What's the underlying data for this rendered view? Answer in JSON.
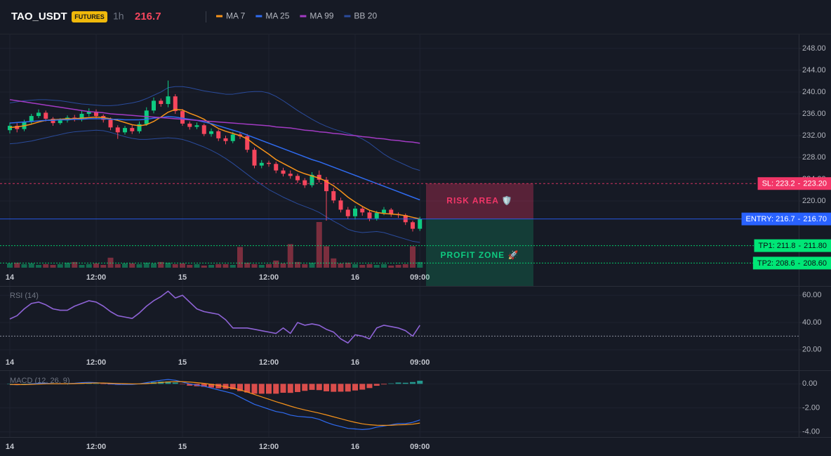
{
  "header": {
    "symbol": "TAO_USDT",
    "badge": "FUTURES",
    "interval": "1h",
    "price": "216.7"
  },
  "chart_data": [
    {
      "type": "candlestick",
      "categories": [
        "14",
        null,
        null,
        null,
        null,
        null,
        null,
        null,
        null,
        null,
        null,
        null,
        "12:00",
        null,
        null,
        null,
        null,
        null,
        null,
        null,
        null,
        null,
        null,
        null,
        "15",
        null,
        null,
        null,
        null,
        null,
        null,
        null,
        null,
        null,
        null,
        null,
        "12:00",
        null,
        null,
        null,
        null,
        null,
        null,
        null,
        null,
        null,
        null,
        null,
        "16",
        null,
        null,
        null,
        null,
        null,
        null,
        null,
        null,
        "09:00"
      ],
      "open": [
        233.0,
        233.8,
        233.2,
        234.5,
        235.6,
        236.2,
        235.1,
        234.3,
        234.8,
        235.3,
        235.0,
        236.0,
        236.4,
        235.6,
        234.9,
        233.5,
        232.6,
        233.4,
        232.8,
        234.1,
        236.6,
        238.4,
        237.8,
        239.2,
        236.5,
        234.2,
        233.6,
        233.9,
        232.3,
        232.8,
        231.5,
        231.0,
        232.2,
        231.9,
        229.4,
        226.5,
        227.0,
        226.8,
        225.6,
        225.0,
        224.6,
        223.8,
        222.9,
        224.8,
        223.9,
        221.8,
        220.1,
        218.4,
        217.2,
        218.6,
        217.9,
        216.8,
        217.8,
        218.4,
        217.6,
        217.4,
        216.1,
        214.9
      ],
      "high": [
        234.4,
        234.3,
        234.9,
        236.0,
        236.8,
        236.6,
        235.4,
        235.2,
        235.7,
        235.8,
        236.6,
        237.0,
        236.8,
        235.9,
        235.3,
        233.9,
        233.8,
        233.9,
        234.6,
        237.2,
        239.0,
        238.8,
        242.1,
        239.6,
        236.9,
        234.6,
        234.4,
        234.2,
        233.3,
        233.1,
        232.0,
        232.7,
        232.6,
        232.3,
        229.8,
        227.5,
        227.4,
        227.2,
        226.1,
        225.6,
        225.0,
        224.2,
        225.3,
        225.6,
        224.4,
        222.4,
        220.6,
        218.9,
        219.1,
        218.9,
        218.2,
        218.2,
        218.9,
        218.7,
        217.9,
        217.7,
        216.4,
        217.1
      ],
      "low": [
        232.4,
        232.6,
        232.8,
        234.1,
        235.2,
        234.6,
        233.8,
        234.0,
        234.4,
        234.6,
        234.6,
        235.5,
        235.1,
        234.4,
        233.0,
        231.4,
        232.2,
        232.3,
        232.4,
        233.8,
        236.1,
        237.3,
        237.2,
        236.0,
        233.8,
        233.1,
        233.2,
        231.9,
        231.8,
        231.0,
        230.4,
        230.6,
        231.4,
        228.9,
        226.0,
        226.0,
        226.3,
        225.1,
        224.5,
        224.1,
        223.3,
        222.4,
        222.5,
        223.4,
        216.4,
        219.6,
        217.9,
        216.7,
        216.6,
        217.3,
        216.3,
        216.4,
        217.4,
        217.1,
        216.9,
        215.6,
        214.4,
        214.5
      ],
      "close": [
        233.8,
        233.2,
        234.5,
        235.6,
        236.2,
        235.1,
        234.3,
        234.8,
        235.3,
        235.0,
        236.0,
        236.4,
        235.6,
        234.9,
        233.5,
        232.6,
        233.4,
        232.8,
        234.1,
        236.6,
        238.4,
        237.8,
        239.2,
        236.5,
        234.2,
        233.6,
        233.9,
        232.3,
        232.8,
        231.5,
        231.0,
        232.2,
        231.9,
        229.4,
        226.5,
        227.0,
        226.8,
        225.6,
        225.0,
        224.6,
        223.8,
        222.9,
        224.8,
        223.9,
        221.8,
        220.1,
        218.4,
        217.2,
        218.6,
        217.9,
        216.8,
        217.8,
        218.4,
        217.6,
        217.4,
        216.1,
        214.9,
        216.7
      ],
      "volume": [
        12,
        14,
        10,
        12,
        8,
        10,
        8,
        10,
        14,
        16,
        8,
        10,
        12,
        8,
        28,
        10,
        12,
        12,
        10,
        14,
        12,
        16,
        14,
        10,
        12,
        8,
        10,
        6,
        8,
        10,
        10,
        8,
        58,
        14,
        10,
        8,
        10,
        20,
        12,
        66,
        16,
        10,
        14,
        128,
        60,
        26,
        12,
        14,
        10,
        8,
        10,
        8,
        10,
        6,
        8,
        10,
        60,
        16
      ],
      "up_color": "#0ecb81",
      "down_color": "#f6465d",
      "series": [
        {
          "name": "MA 7",
          "color": "#f7931a",
          "values": [
            233.5,
            233.6,
            233.8,
            234.1,
            234.5,
            234.8,
            234.9,
            235.0,
            235.1,
            235.1,
            235.2,
            235.3,
            235.4,
            235.3,
            235.1,
            234.8,
            234.4,
            234.0,
            233.8,
            234.0,
            234.6,
            235.4,
            236.3,
            236.8,
            236.7,
            236.1,
            235.6,
            235.0,
            234.1,
            233.3,
            232.8,
            232.4,
            232.0,
            231.4,
            230.4,
            229.5,
            228.6,
            227.6,
            226.9,
            226.2,
            225.5,
            225.0,
            224.6,
            224.2,
            223.6,
            222.8,
            221.8,
            220.7,
            219.8,
            219.0,
            218.3,
            217.9,
            217.7,
            217.6,
            217.5,
            217.3,
            217.0,
            216.7
          ]
        },
        {
          "name": "MA 25",
          "color": "#2f6bf0",
          "values": [
            234.3,
            234.4,
            234.5,
            234.6,
            234.7,
            234.8,
            234.8,
            234.9,
            234.9,
            235.0,
            235.0,
            235.1,
            235.1,
            235.1,
            235.0,
            235.0,
            234.9,
            234.9,
            234.9,
            235.0,
            235.2,
            235.3,
            235.5,
            235.4,
            235.2,
            235.0,
            234.8,
            234.5,
            234.2,
            233.8,
            233.4,
            233.0,
            232.6,
            232.1,
            231.6,
            231.1,
            230.6,
            230.1,
            229.6,
            229.1,
            228.6,
            228.1,
            227.6,
            227.2,
            226.7,
            226.2,
            225.7,
            225.2,
            224.7,
            224.2,
            223.7,
            223.2,
            222.7,
            222.2,
            221.7,
            221.2,
            220.7,
            220.2
          ]
        },
        {
          "name": "MA 99",
          "color": "#a33bc4",
          "values": [
            238.6,
            238.4,
            238.2,
            238.0,
            237.8,
            237.6,
            237.4,
            237.2,
            237.0,
            236.8,
            236.6,
            236.4,
            236.3,
            236.2,
            236.0,
            235.9,
            235.8,
            235.7,
            235.6,
            235.5,
            235.4,
            235.3,
            235.2,
            235.1,
            235.0,
            234.9,
            234.8,
            234.7,
            234.6,
            234.5,
            234.4,
            234.3,
            234.2,
            234.1,
            234.0,
            233.9,
            233.8,
            233.6,
            233.5,
            233.4,
            233.2,
            233.0,
            232.9,
            232.7,
            232.6,
            232.4,
            232.3,
            232.1,
            232.0,
            231.8,
            231.7,
            231.5,
            231.4,
            231.2,
            231.1,
            230.9,
            230.8,
            230.6
          ]
        }
      ],
      "bands": {
        "name": "BB 20",
        "color": "#2a4b9b",
        "upper": [
          238.0,
          238.2,
          238.4,
          238.5,
          238.6,
          238.6,
          238.5,
          238.4,
          238.2,
          238.0,
          237.8,
          237.7,
          237.6,
          237.5,
          237.5,
          237.6,
          237.8,
          238.0,
          238.3,
          238.8,
          239.4,
          240.0,
          240.8,
          241.0,
          241.0,
          240.8,
          240.5,
          240.2,
          240.0,
          239.8,
          239.6,
          239.6,
          239.8,
          240.0,
          240.1,
          240.1,
          239.8,
          239.2,
          238.4,
          237.5,
          236.6,
          235.8,
          235.0,
          234.3,
          233.7,
          233.2,
          232.8,
          232.4,
          232.0,
          231.4,
          230.6,
          229.6,
          228.6,
          227.8,
          227.2,
          226.6,
          226.0,
          225.6
        ],
        "lower": [
          230.5,
          230.6,
          230.8,
          231.0,
          231.3,
          231.6,
          231.9,
          232.2,
          232.5,
          232.7,
          232.8,
          232.9,
          233.0,
          232.9,
          232.6,
          232.2,
          231.8,
          231.5,
          231.3,
          231.3,
          231.4,
          231.5,
          231.6,
          231.5,
          231.3,
          230.9,
          230.4,
          229.9,
          229.3,
          228.6,
          227.8,
          226.9,
          225.9,
          224.9,
          223.9,
          223.0,
          222.1,
          221.4,
          220.7,
          220.1,
          219.5,
          219.0,
          218.5,
          217.9,
          217.1,
          216.3,
          215.6,
          214.8,
          214.4,
          214.2,
          214.3,
          214.4,
          214.2,
          213.8,
          213.4,
          213.0,
          212.6,
          212.4
        ]
      },
      "ylim": [
        204.4,
        250.7
      ],
      "yticks": [
        {
          "value": 220,
          "label": "220.00"
        },
        {
          "value": 224,
          "label": "224.00"
        },
        {
          "value": 228,
          "label": "228.00"
        },
        {
          "value": 232,
          "label": "232.00"
        },
        {
          "value": 236,
          "label": "236.00"
        },
        {
          "value": 240,
          "label": "240.00"
        },
        {
          "value": 244,
          "label": "244.00"
        },
        {
          "value": 248,
          "label": "248.00"
        }
      ],
      "grid": true,
      "tag_separator": "-",
      "levels": [
        {
          "label": "SL: 223.2",
          "value": 223.2,
          "value_label": "223.20",
          "color": "#f23668",
          "text_color": "#ffffff",
          "style": "dashed"
        },
        {
          "label": "ENTRY: 216.7",
          "value": 216.7,
          "value_label": "216.70",
          "color": "#2962ff",
          "text_color": "#ffffff",
          "style": "solid"
        },
        {
          "label": "TP1: 211.8",
          "value": 211.8,
          "value_label": "211.80",
          "color": "#00e676",
          "text_color": "#0b0e14",
          "style": "dotted"
        },
        {
          "label": "TP2: 208.6",
          "value": 208.6,
          "value_label": "208.60",
          "color": "#00e676",
          "text_color": "#0b0e14",
          "style": "dotted"
        }
      ],
      "zones": [
        {
          "label": "RISK AREA 🛡️",
          "color": "#f23668"
        },
        {
          "label": "PROFIT ZONE 🚀",
          "color": "#0ecb81"
        }
      ]
    },
    {
      "type": "line",
      "title": "RSI (14)",
      "color": "#8e63d6",
      "values": [
        42.6,
        45,
        50,
        54,
        55,
        53,
        50,
        49,
        49,
        52,
        54,
        56,
        55,
        52,
        48,
        45,
        44,
        43,
        47,
        52,
        56,
        59,
        63,
        58,
        60,
        55,
        50,
        48,
        47,
        46,
        42,
        36,
        36,
        36,
        35,
        34,
        33,
        32,
        36,
        32,
        40,
        38,
        39,
        38,
        35,
        33,
        28,
        25,
        31,
        30,
        28,
        36,
        38,
        37,
        36,
        34,
        30,
        38
      ],
      "reference": 30,
      "ylim": [
        16.3,
        66.3
      ],
      "yticks": [
        {
          "value": 20,
          "label": "20.00"
        },
        {
          "value": 40,
          "label": "40.00"
        },
        {
          "value": 60,
          "label": "60.00"
        }
      ],
      "grid": true
    },
    {
      "type": "macd",
      "title": "MACD (12, 26, 9)",
      "macd": {
        "color": "#2f6bf0",
        "values": [
          -0.05,
          -0.08,
          -0.05,
          0.0,
          0.05,
          0.05,
          0.02,
          0.0,
          0.02,
          0.05,
          0.1,
          0.12,
          0.1,
          0.05,
          0.0,
          -0.05,
          -0.05,
          -0.05,
          0.0,
          0.1,
          0.2,
          0.3,
          0.36,
          0.3,
          0.15,
          0.0,
          -0.1,
          -0.2,
          -0.35,
          -0.5,
          -0.65,
          -0.8,
          -1.1,
          -1.4,
          -1.7,
          -1.9,
          -2.1,
          -2.3,
          -2.4,
          -2.6,
          -2.7,
          -2.75,
          -2.8,
          -2.95,
          -3.2,
          -3.4,
          -3.55,
          -3.7,
          -3.75,
          -3.8,
          -3.75,
          -3.6,
          -3.5,
          -3.4,
          -3.3,
          -3.3,
          -3.2,
          -3.0
        ]
      },
      "signal": {
        "color": "#f7931a",
        "values": [
          -0.05,
          -0.06,
          -0.06,
          -0.04,
          -0.02,
          0.0,
          0.01,
          0.01,
          0.01,
          0.02,
          0.04,
          0.06,
          0.07,
          0.07,
          0.05,
          0.03,
          0.01,
          0.0,
          0.0,
          0.02,
          0.06,
          0.11,
          0.16,
          0.19,
          0.18,
          0.15,
          0.1,
          0.04,
          -0.04,
          -0.13,
          -0.24,
          -0.35,
          -0.5,
          -0.68,
          -0.88,
          -1.08,
          -1.28,
          -1.48,
          -1.66,
          -1.85,
          -2.02,
          -2.17,
          -2.3,
          -2.43,
          -2.58,
          -2.74,
          -2.9,
          -3.06,
          -3.2,
          -3.32,
          -3.4,
          -3.44,
          -3.45,
          -3.44,
          -3.41,
          -3.39,
          -3.35,
          -3.26
        ]
      },
      "histogram": {
        "up_color": "#26a69a",
        "down_color": "#ef5350",
        "values": [
          0,
          -0.02,
          0.01,
          0.04,
          0.07,
          0.05,
          0.01,
          -0.01,
          0.01,
          0.03,
          0.06,
          0.06,
          0.03,
          -0.02,
          -0.05,
          -0.08,
          -0.06,
          -0.05,
          0.0,
          0.08,
          0.14,
          0.19,
          0.2,
          0.11,
          -0.03,
          -0.15,
          -0.2,
          -0.24,
          -0.31,
          -0.37,
          -0.41,
          -0.45,
          -0.6,
          -0.72,
          -0.82,
          -0.82,
          -0.82,
          -0.82,
          -0.74,
          -0.75,
          -0.68,
          -0.58,
          -0.5,
          -0.52,
          -0.62,
          -0.66,
          -0.65,
          -0.64,
          -0.55,
          -0.48,
          -0.35,
          -0.16,
          -0.05,
          0.04,
          0.11,
          0.09,
          0.15,
          0.26
        ]
      },
      "ylim": [
        -4.42,
        1.07
      ],
      "yticks": [
        {
          "value": -4,
          "label": "-4.00"
        },
        {
          "value": -2,
          "label": "-2.00"
        },
        {
          "value": 0,
          "label": "0.00"
        }
      ],
      "grid": true
    }
  ]
}
